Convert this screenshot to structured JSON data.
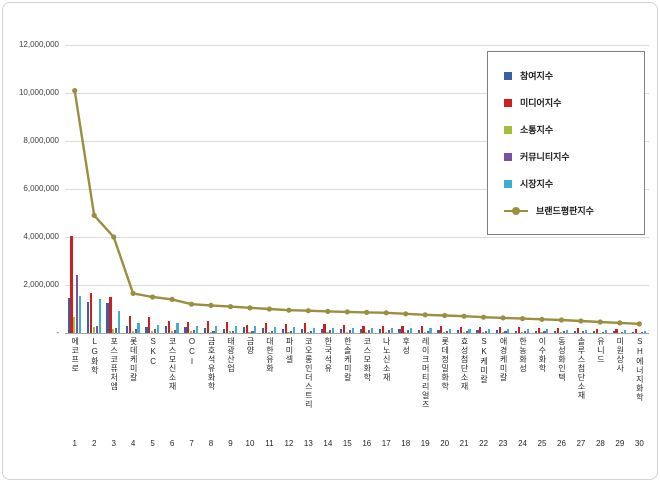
{
  "page": {
    "background": "#ffffff",
    "frame_border_color": "#d4d4d4"
  },
  "chart_data": {
    "type": "bar",
    "subtype": "clustered-bars-with-line-overlay",
    "title": "",
    "xlabel": "",
    "ylabel": "",
    "grid": true,
    "legend_position": "top-right",
    "y_axis": {
      "min": 0,
      "max": 12000000,
      "step": 2000000,
      "zero_label": "-",
      "tick_labels": [
        "-",
        "2,000,000",
        "4,000,000",
        "6,000,000",
        "8,000,000",
        "10,000,000",
        "12,000,000"
      ]
    },
    "categories": [
      "에코프로",
      "LG화학",
      "포스코퓨처엠",
      "롯데케미칼",
      "SKC",
      "코스모신소재",
      "OCI",
      "금호석유화학",
      "태광산업",
      "금양",
      "대한유화",
      "파미셀",
      "코오롱인더스트리",
      "한국석유",
      "한솔케미칼",
      "코스모화학",
      "나노신소재",
      "후성",
      "레이크머티리얼즈",
      "롯데정밀화학",
      "효성첨단소재",
      "SK케미칼",
      "애경케미칼",
      "한농화성",
      "이수화학",
      "동성화인텍",
      "솔루스첨단소재",
      "유니드",
      "미원상사",
      "SH에너지화학"
    ],
    "ranks": [
      "1",
      "2",
      "3",
      "4",
      "5",
      "6",
      "7",
      "8",
      "9",
      "10",
      "11",
      "12",
      "13",
      "14",
      "15",
      "16",
      "17",
      "18",
      "19",
      "20",
      "21",
      "22",
      "23",
      "24",
      "25",
      "26",
      "27",
      "28",
      "29",
      "30"
    ],
    "series": [
      {
        "name": "참여지수",
        "color": "#3A5FA5",
        "values": [
          1450000,
          1300000,
          1250000,
          300000,
          250000,
          300000,
          250000,
          200000,
          180000,
          250000,
          200000,
          180000,
          180000,
          150000,
          160000,
          180000,
          160000,
          150000,
          140000,
          130000,
          120000,
          120000,
          110000,
          100000,
          100000,
          90000,
          90000,
          80000,
          70000,
          60000
        ]
      },
      {
        "name": "미디어지수",
        "color": "#CC2020",
        "values": [
          4050000,
          1650000,
          1500000,
          700000,
          650000,
          500000,
          450000,
          500000,
          450000,
          350000,
          400000,
          380000,
          400000,
          380000,
          350000,
          300000,
          300000,
          300000,
          280000,
          280000,
          270000,
          250000,
          240000,
          230000,
          220000,
          210000,
          190000,
          180000,
          160000,
          150000
        ]
      },
      {
        "name": "소통지수",
        "color": "#A3BD3C",
        "values": [
          650000,
          250000,
          150000,
          100000,
          100000,
          80000,
          70000,
          60000,
          70000,
          50000,
          50000,
          40000,
          50000,
          50000,
          50000,
          40000,
          40000,
          40000,
          40000,
          40000,
          40000,
          30000,
          30000,
          30000,
          30000,
          30000,
          20000,
          20000,
          20000,
          20000
        ]
      },
      {
        "name": "커뮤니티지수",
        "color": "#7A52A3",
        "values": [
          2400000,
          300000,
          200000,
          150000,
          150000,
          120000,
          130000,
          90000,
          100000,
          100000,
          100000,
          100000,
          100000,
          120000,
          120000,
          120000,
          120000,
          110000,
          100000,
          100000,
          90000,
          90000,
          90000,
          80000,
          70000,
          70000,
          70000,
          60000,
          60000,
          50000
        ]
      },
      {
        "name": "시장지수",
        "color": "#3FAFD0",
        "values": [
          1550000,
          1400000,
          900000,
          400000,
          350000,
          400000,
          300000,
          300000,
          300000,
          300000,
          250000,
          250000,
          200000,
          200000,
          200000,
          220000,
          220000,
          200000,
          200000,
          180000,
          180000,
          170000,
          160000,
          160000,
          150000,
          140000,
          130000,
          120000,
          110000,
          100000
        ]
      }
    ],
    "line_series": {
      "name": "브랜드평판지수",
      "color": "#9A8F3E",
      "marker": "circle",
      "values": [
        10100000,
        4900000,
        4000000,
        1650000,
        1500000,
        1400000,
        1200000,
        1150000,
        1100000,
        1050000,
        1000000,
        950000,
        930000,
        900000,
        880000,
        860000,
        840000,
        800000,
        760000,
        730000,
        700000,
        660000,
        630000,
        600000,
        570000,
        540000,
        500000,
        460000,
        420000,
        380000
      ]
    }
  }
}
